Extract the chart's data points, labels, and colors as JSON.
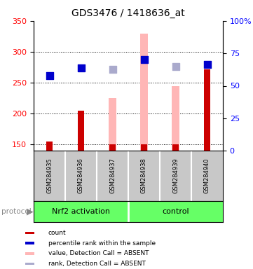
{
  "title": "GDS3476 / 1418636_at",
  "samples": [
    "GSM284935",
    "GSM284936",
    "GSM284937",
    "GSM284938",
    "GSM284939",
    "GSM284940"
  ],
  "ylim_left": [
    140,
    350
  ],
  "ylim_right": [
    0,
    100
  ],
  "yticks_left": [
    150,
    200,
    250,
    300,
    350
  ],
  "yticks_right": [
    0,
    25,
    50,
    75,
    100
  ],
  "yticklabels_right": [
    "0",
    "25",
    "50",
    "75",
    "100%"
  ],
  "red_bars": [
    155,
    205,
    150,
    150,
    150,
    272
  ],
  "pink_bars": [
    null,
    null,
    225,
    330,
    244,
    null
  ],
  "blue_dots_left": [
    262,
    274,
    null,
    288,
    null,
    280
  ],
  "lavender_dots_left": [
    null,
    null,
    272,
    null,
    276,
    null
  ],
  "red_color": "#CC0000",
  "pink_color": "#FFB6B6",
  "blue_color": "#0000CC",
  "lavender_color": "#AAAACC",
  "dot_size": 55,
  "grid_color": "black",
  "legend_items": [
    {
      "label": "count",
      "color": "#CC0000"
    },
    {
      "label": "percentile rank within the sample",
      "color": "#0000CC"
    },
    {
      "label": "value, Detection Call = ABSENT",
      "color": "#FFB6B6"
    },
    {
      "label": "rank, Detection Call = ABSENT",
      "color": "#AAAACC"
    }
  ],
  "nrf2_label": "Nrf2 activation",
  "control_label": "control",
  "protocol_label": "protocol",
  "green_color": "#66FF66",
  "gray_color": "#C8C8C8",
  "background_color": "#ffffff"
}
